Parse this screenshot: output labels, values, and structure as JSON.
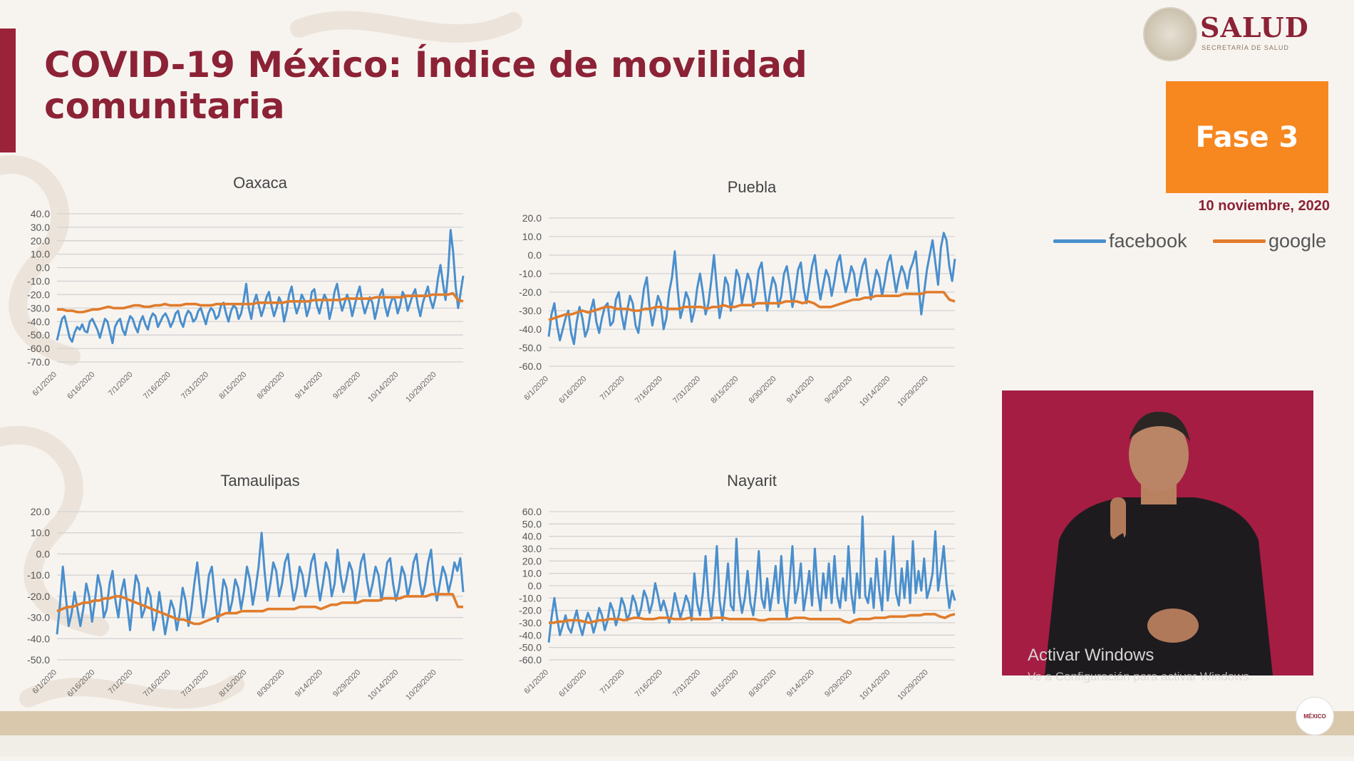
{
  "title": "COVID-19 México: Índice de movilidad comunitaria",
  "logo": {
    "name": "SALUD",
    "subtitle": "SECRETARÍA DE SALUD"
  },
  "phase_badge": "Fase 3",
  "date": "10 noviembre, 2020",
  "legend": [
    {
      "label": "facebook",
      "color": "#4a8fcd"
    },
    {
      "label": "google",
      "color": "#e07c2c"
    }
  ],
  "watermark": {
    "line1": "Activar Windows",
    "line2": "Ve a Configuración para activar Windows."
  },
  "footer_badge": "MÉXICO",
  "x_ticks": [
    "6/1/2020",
    "6/16/2020",
    "7/1/2020",
    "7/16/2020",
    "7/31/2020",
    "8/15/2020",
    "8/30/2020",
    "9/14/2020",
    "9/29/2020",
    "10/14/2020",
    "10/29/2020"
  ],
  "chart_data": [
    {
      "type": "line",
      "title": "Oaxaca",
      "ylim": [
        -70,
        40
      ],
      "yticks": [
        "40.0",
        "30.0",
        "20.0",
        "10.0",
        "0.0",
        "-10.0",
        "-20.0",
        "-30.0",
        "-40.0",
        "-50.0",
        "-60.0",
        "-70.0"
      ],
      "x_start": "6/1/2020",
      "x_end": "11/10/2020",
      "grid": true,
      "series": [
        {
          "name": "facebook",
          "values": [
            -54,
            -46,
            -38,
            -36,
            -44,
            -52,
            -55,
            -48,
            -44,
            -46,
            -42,
            -47,
            -48,
            -40,
            -38,
            -42,
            -46,
            -52,
            -45,
            -38,
            -40,
            -48,
            -56,
            -44,
            -40,
            -38,
            -46,
            -50,
            -42,
            -36,
            -38,
            -44,
            -48,
            -40,
            -36,
            -42,
            -46,
            -38,
            -34,
            -36,
            -44,
            -40,
            -36,
            -34,
            -38,
            -44,
            -40,
            -34,
            -32,
            -40,
            -44,
            -36,
            -32,
            -34,
            -40,
            -38,
            -32,
            -30,
            -36,
            -42,
            -34,
            -30,
            -32,
            -38,
            -36,
            -28,
            -26,
            -34,
            -40,
            -32,
            -28,
            -30,
            -38,
            -34,
            -24,
            -12,
            -30,
            -38,
            -26,
            -20,
            -28,
            -36,
            -30,
            -22,
            -18,
            -28,
            -36,
            -30,
            -22,
            -26,
            -40,
            -32,
            -20,
            -14,
            -26,
            -34,
            -28,
            -20,
            -24,
            -36,
            -30,
            -18,
            -16,
            -28,
            -34,
            -26,
            -20,
            -24,
            -38,
            -30,
            -18,
            -12,
            -24,
            -32,
            -26,
            -20,
            -26,
            -36,
            -28,
            -20,
            -14,
            -26,
            -34,
            -28,
            -22,
            -26,
            -38,
            -30,
            -20,
            -16,
            -28,
            -36,
            -28,
            -22,
            -24,
            -34,
            -28,
            -18,
            -22,
            -32,
            -26,
            -20,
            -16,
            -28,
            -36,
            -26,
            -20,
            -14,
            -24,
            -30,
            -22,
            -8,
            2,
            -12,
            -24,
            -4,
            28,
            12,
            -14,
            -30,
            -18,
            -6
          ],
          "color": "#4a8fcd"
        },
        {
          "name": "google",
          "values": [
            -31,
            -31,
            -32,
            -32,
            -33,
            -33,
            -32,
            -31,
            -31,
            -30,
            -29,
            -30,
            -30,
            -30,
            -29,
            -28,
            -28,
            -29,
            -29,
            -28,
            -28,
            -27,
            -28,
            -28,
            -28,
            -27,
            -27,
            -27,
            -28,
            -28,
            -28,
            -27,
            -27,
            -27,
            -27,
            -27,
            -27,
            -27,
            -27,
            -26,
            -26,
            -26,
            -26,
            -26,
            -26,
            -25,
            -25,
            -25,
            -25,
            -25,
            -24,
            -24,
            -24,
            -24,
            -24,
            -24,
            -23,
            -23,
            -23,
            -23,
            -23,
            -23,
            -22,
            -22,
            -22,
            -22,
            -22,
            -22,
            -21,
            -21,
            -21,
            -21,
            -21,
            -20,
            -20,
            -20,
            -20,
            -19,
            -24,
            -25
          ],
          "color": "#e07c2c"
        }
      ]
    },
    {
      "type": "line",
      "title": "Puebla",
      "ylim": [
        -60,
        20
      ],
      "yticks": [
        "20.0",
        "10.0",
        "0.0",
        "-10.0",
        "-20.0",
        "-30.0",
        "-40.0",
        "-50.0",
        "-60.0"
      ],
      "x_start": "6/1/2020",
      "x_end": "11/10/2020",
      "grid": true,
      "series": [
        {
          "name": "facebook",
          "values": [
            -44,
            -32,
            -26,
            -38,
            -46,
            -40,
            -34,
            -30,
            -42,
            -48,
            -36,
            -28,
            -34,
            -44,
            -40,
            -30,
            -24,
            -36,
            -42,
            -34,
            -28,
            -26,
            -38,
            -36,
            -24,
            -20,
            -32,
            -40,
            -30,
            -22,
            -26,
            -38,
            -42,
            -30,
            -18,
            -12,
            -28,
            -38,
            -30,
            -22,
            -26,
            -40,
            -34,
            -20,
            -12,
            2,
            -18,
            -34,
            -28,
            -20,
            -24,
            -36,
            -30,
            -18,
            -10,
            -20,
            -32,
            -26,
            -14,
            0,
            -18,
            -34,
            -26,
            -12,
            -16,
            -30,
            -22,
            -8,
            -12,
            -26,
            -18,
            -10,
            -14,
            -28,
            -20,
            -8,
            -4,
            -18,
            -30,
            -20,
            -12,
            -16,
            -28,
            -22,
            -10,
            -6,
            -16,
            -28,
            -20,
            -8,
            -4,
            -18,
            -26,
            -16,
            -6,
            0,
            -14,
            -24,
            -16,
            -8,
            -12,
            -22,
            -14,
            -4,
            0,
            -12,
            -20,
            -14,
            -6,
            -10,
            -22,
            -14,
            -6,
            -2,
            -14,
            -24,
            -16,
            -8,
            -12,
            -22,
            -14,
            -4,
            0,
            -10,
            -20,
            -12,
            -6,
            -10,
            -18,
            -8,
            -4,
            2,
            -16,
            -32,
            -20,
            -8,
            0,
            8,
            -4,
            -16,
            4,
            12,
            8,
            -6,
            -14,
            -2
          ],
          "color": "#4a8fcd"
        },
        {
          "name": "google",
          "values": [
            -35,
            -34,
            -33,
            -32,
            -32,
            -31,
            -30,
            -31,
            -30,
            -29,
            -28,
            -28,
            -29,
            -29,
            -29,
            -30,
            -30,
            -29,
            -29,
            -28,
            -28,
            -29,
            -29,
            -29,
            -28,
            -28,
            -28,
            -28,
            -29,
            -28,
            -28,
            -27,
            -28,
            -28,
            -27,
            -27,
            -27,
            -26,
            -26,
            -26,
            -26,
            -26,
            -25,
            -25,
            -25,
            -26,
            -25,
            -26,
            -28,
            -28,
            -28,
            -27,
            -26,
            -25,
            -24,
            -24,
            -23,
            -23,
            -22,
            -22,
            -22,
            -22,
            -22,
            -21,
            -21,
            -21,
            -21,
            -20,
            -20,
            -20,
            -20,
            -24,
            -25
          ],
          "color": "#e07c2c"
        }
      ]
    },
    {
      "type": "line",
      "title": "Tamaulipas",
      "ylim": [
        -50,
        20
      ],
      "yticks": [
        "20.0",
        "10.0",
        "0.0",
        "-10.0",
        "-20.0",
        "-30.0",
        "-40.0",
        "-50.0"
      ],
      "x_start": "6/1/2020",
      "x_end": "11/10/2020",
      "grid": true,
      "series": [
        {
          "name": "facebook",
          "values": [
            -38,
            -24,
            -6,
            -20,
            -34,
            -28,
            -18,
            -26,
            -34,
            -26,
            -14,
            -20,
            -32,
            -22,
            -10,
            -16,
            -30,
            -26,
            -14,
            -8,
            -22,
            -30,
            -18,
            -12,
            -24,
            -36,
            -22,
            -10,
            -14,
            -30,
            -26,
            -16,
            -20,
            -36,
            -30,
            -18,
            -28,
            -38,
            -30,
            -22,
            -26,
            -36,
            -28,
            -16,
            -22,
            -34,
            -26,
            -14,
            -4,
            -18,
            -30,
            -22,
            -10,
            -6,
            -20,
            -32,
            -24,
            -12,
            -16,
            -28,
            -22,
            -12,
            -16,
            -26,
            -18,
            -6,
            -12,
            -24,
            -16,
            -6,
            10,
            -8,
            -22,
            -14,
            -4,
            -8,
            -20,
            -14,
            -4,
            0,
            -12,
            -22,
            -16,
            -6,
            -10,
            -20,
            -14,
            -4,
            0,
            -12,
            -22,
            -14,
            -4,
            -8,
            -20,
            -14,
            2,
            -10,
            -18,
            -12,
            -4,
            -8,
            -22,
            -14,
            -4,
            0,
            -12,
            -20,
            -14,
            -6,
            -10,
            -22,
            -14,
            -4,
            -2,
            -14,
            -22,
            -16,
            -6,
            -10,
            -20,
            -14,
            -4,
            0,
            -12,
            -20,
            -14,
            -4,
            2,
            -14,
            -22,
            -14,
            -6,
            -10,
            -18,
            -12,
            -4,
            -8,
            -2,
            -18
          ],
          "color": "#4a8fcd"
        },
        {
          "name": "google",
          "values": [
            -27,
            -26,
            -25,
            -25,
            -24,
            -23,
            -23,
            -22,
            -22,
            -21,
            -21,
            -20,
            -20,
            -21,
            -22,
            -23,
            -24,
            -25,
            -26,
            -27,
            -28,
            -29,
            -30,
            -31,
            -31,
            -32,
            -33,
            -33,
            -32,
            -31,
            -30,
            -29,
            -28,
            -28,
            -28,
            -27,
            -27,
            -27,
            -27,
            -27,
            -26,
            -26,
            -26,
            -26,
            -26,
            -26,
            -25,
            -25,
            -25,
            -25,
            -26,
            -25,
            -24,
            -24,
            -23,
            -23,
            -23,
            -23,
            -22,
            -22,
            -22,
            -22,
            -21,
            -21,
            -21,
            -21,
            -20,
            -20,
            -20,
            -20,
            -20,
            -19,
            -19,
            -19,
            -19,
            -19,
            -25,
            -25
          ],
          "color": "#e07c2c"
        }
      ]
    },
    {
      "type": "line",
      "title": "Nayarit",
      "ylim": [
        -60,
        60
      ],
      "yticks": [
        "60.0",
        "50.0",
        "40.0",
        "30.0",
        "20.0",
        "10.0",
        "0.0",
        "-10.0",
        "-20.0",
        "-30.0",
        "-40.0",
        "-50.0",
        "-60.0"
      ],
      "x_start": "6/1/2020",
      "x_end": "11/10/2020",
      "grid": true,
      "series": [
        {
          "name": "facebook",
          "values": [
            -46,
            -26,
            -10,
            -26,
            -40,
            -32,
            -24,
            -34,
            -38,
            -28,
            -20,
            -32,
            -40,
            -30,
            -22,
            -28,
            -38,
            -30,
            -18,
            -24,
            -36,
            -28,
            -14,
            -20,
            -32,
            -24,
            -10,
            -16,
            -28,
            -22,
            -8,
            -14,
            -26,
            -18,
            -4,
            -10,
            -22,
            -14,
            2,
            -8,
            -20,
            -12,
            -20,
            -30,
            -22,
            -6,
            -16,
            -26,
            -18,
            -8,
            -14,
            -28,
            10,
            -14,
            -24,
            -6,
            24,
            -10,
            -26,
            -4,
            32,
            -12,
            -28,
            -8,
            18,
            -16,
            -20,
            38,
            -6,
            -22,
            -10,
            12,
            -14,
            -24,
            -4,
            28,
            -10,
            -18,
            6,
            -20,
            -4,
            16,
            -14,
            24,
            -10,
            -26,
            4,
            32,
            -14,
            -2,
            18,
            -20,
            -6,
            12,
            -16,
            30,
            -4,
            -20,
            10,
            -10,
            18,
            -14,
            24,
            -8,
            -18,
            6,
            -12,
            32,
            -6,
            -22,
            10,
            -10,
            56,
            -8,
            -14,
            6,
            -18,
            22,
            -4,
            -20,
            28,
            -12,
            8,
            40,
            -6,
            -16,
            14,
            -10,
            20,
            -14,
            36,
            -6,
            12,
            -4,
            22,
            -10,
            -2,
            10,
            44,
            -4,
            12,
            32,
            2,
            -18,
            -4,
            -12
          ],
          "color": "#4a8fcd"
        },
        {
          "name": "google",
          "values": [
            -30,
            -30,
            -29,
            -29,
            -28,
            -28,
            -28,
            -29,
            -30,
            -29,
            -28,
            -28,
            -27,
            -27,
            -27,
            -28,
            -27,
            -26,
            -26,
            -27,
            -27,
            -27,
            -26,
            -26,
            -26,
            -27,
            -27,
            -27,
            -26,
            -27,
            -27,
            -27,
            -27,
            -26,
            -26,
            -26,
            -27,
            -27,
            -27,
            -27,
            -27,
            -27,
            -28,
            -28,
            -27,
            -27,
            -27,
            -27,
            -27,
            -26,
            -26,
            -26,
            -27,
            -27,
            -27,
            -27,
            -27,
            -27,
            -27,
            -29,
            -30,
            -28,
            -27,
            -27,
            -27,
            -26,
            -26,
            -26,
            -25,
            -25,
            -25,
            -25,
            -24,
            -24,
            -24,
            -23,
            -23,
            -23,
            -25,
            -26,
            -24,
            -23
          ],
          "color": "#e07c2c"
        }
      ]
    }
  ]
}
